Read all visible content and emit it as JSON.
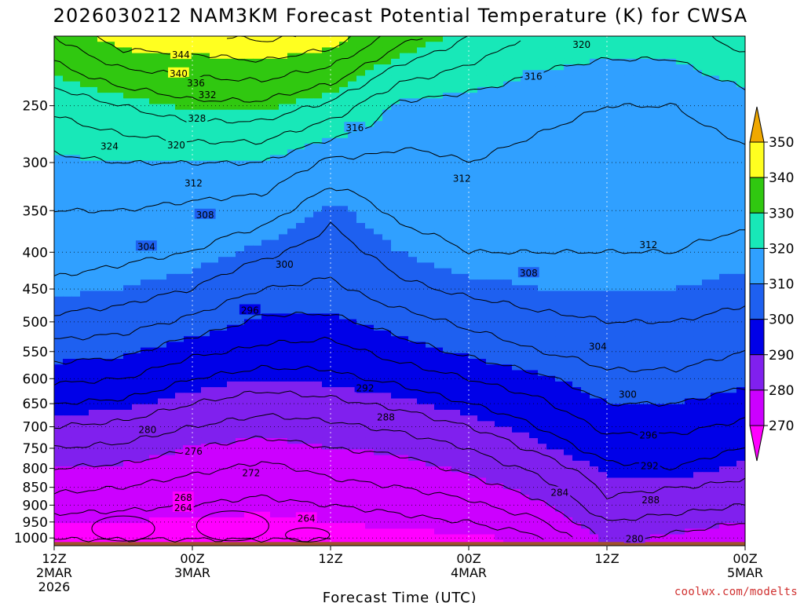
{
  "chart_data": {
    "type": "heatmap",
    "title": "2026030212 NAM3KM Forecast Potential Temperature (K) for CWSA",
    "xlabel": "Forecast Time (UTC)",
    "ylabel": "",
    "x_ticks": [
      {
        "hours": 0,
        "lines": [
          "12Z",
          "2MAR",
          "2026"
        ]
      },
      {
        "hours": 12,
        "lines": [
          "00Z",
          "3MAR"
        ]
      },
      {
        "hours": 24,
        "lines": [
          "12Z"
        ]
      },
      {
        "hours": 36,
        "lines": [
          "00Z",
          "4MAR"
        ]
      },
      {
        "hours": 48,
        "lines": [
          "12Z"
        ]
      },
      {
        "hours": 60,
        "lines": [
          "00Z",
          "5MAR"
        ]
      }
    ],
    "xlim_hours": [
      0,
      60
    ],
    "y_scale": "log-pressure",
    "y_ticks": [
      250,
      300,
      350,
      400,
      450,
      500,
      550,
      600,
      650,
      700,
      750,
      800,
      850,
      900,
      950,
      1000
    ],
    "ylim_hPa": [
      200,
      1025
    ],
    "grid": true,
    "colorbar": {
      "levels": [
        270,
        280,
        290,
        300,
        310,
        320,
        330,
        340,
        350
      ],
      "labels": [
        "270",
        "280",
        "290",
        "300",
        "310",
        "320",
        "330",
        "340",
        "350"
      ],
      "colors": [
        "#ff00ff",
        "#cc00ff",
        "#8020ee",
        "#0000e8",
        "#1e60f0",
        "#30a0ff",
        "#18e8b8",
        "#30c810",
        "#ffff20",
        "#f0a800"
      ],
      "extend": "both"
    },
    "fill_colors": {
      "lt270": "#ff00ff",
      "270": "#cc00ff",
      "280": "#8020ee",
      "290": "#0000e8",
      "300": "#1e60f0",
      "310": "#30a0ff",
      "320": "#18e8b8",
      "330": "#30c810",
      "340": "#ffff20"
    },
    "ground_color": "#a0522d",
    "profiles_K_at_hPa": {
      "pressure_levels": [
        1000,
        950,
        900,
        850,
        800,
        750,
        700,
        650,
        600,
        550,
        500,
        450,
        400,
        350,
        300,
        250,
        200
      ],
      "times_hours": [
        0,
        6,
        12,
        18,
        24,
        30,
        36,
        42,
        48,
        54,
        60
      ],
      "theta": [
        [
          268,
          270,
          274,
          277,
          280,
          284,
          288,
          292,
          297,
          302,
          307,
          311,
          314,
          316,
          319,
          325,
          336
        ],
        [
          268,
          270,
          273,
          276,
          279,
          283,
          287,
          291,
          296,
          301,
          306,
          310,
          313,
          316,
          320,
          328,
          343
        ],
        [
          268,
          269,
          272,
          274,
          277,
          280,
          284,
          288,
          292,
          297,
          303,
          308,
          312,
          315,
          320,
          331,
          343
        ],
        [
          268,
          269,
          271,
          273,
          275,
          278,
          282,
          286,
          290,
          295,
          299,
          304,
          309,
          314,
          320,
          331,
          345
        ],
        [
          268,
          270,
          272,
          275,
          277,
          280,
          283,
          287,
          291,
          294,
          299,
          303,
          306,
          309,
          315,
          327,
          343
        ],
        [
          269,
          271,
          273,
          276,
          278,
          281,
          285,
          289,
          293,
          298,
          302,
          307,
          310,
          313,
          315,
          319,
          334
        ],
        [
          269,
          272,
          275,
          278,
          281,
          284,
          288,
          292,
          296,
          301,
          305,
          309,
          312,
          314,
          316,
          318,
          328
        ],
        [
          271,
          275,
          279,
          282,
          285,
          289,
          292,
          295,
          299,
          304,
          307,
          310,
          312,
          314,
          315,
          317,
          323
        ],
        [
          281,
          284,
          287,
          289,
          291,
          294,
          297,
          300,
          303,
          306,
          308,
          310,
          312,
          313,
          314,
          316,
          322
        ],
        [
          279,
          282,
          286,
          288,
          292,
          294,
          297,
          300,
          303,
          306,
          308,
          310,
          312,
          313,
          314,
          316,
          322
        ],
        [
          277,
          280,
          284,
          287,
          289,
          292,
          295,
          298,
          301,
          304,
          307,
          309,
          311,
          313,
          315,
          318,
          326
        ]
      ]
    },
    "contour_labels": [
      {
        "value": "344",
        "t": 11,
        "p": 212
      },
      {
        "value": "340",
        "t": 10.8,
        "p": 225
      },
      {
        "value": "336",
        "t": 12.3,
        "p": 232
      },
      {
        "value": "332",
        "t": 13.3,
        "p": 241
      },
      {
        "value": "328",
        "t": 12.4,
        "p": 260
      },
      {
        "value": "324",
        "t": 4.8,
        "p": 284
      },
      {
        "value": "320",
        "t": 10.6,
        "p": 283
      },
      {
        "value": "320",
        "t": 45.8,
        "p": 205
      },
      {
        "value": "316",
        "t": 41.6,
        "p": 227
      },
      {
        "value": "316",
        "t": 26.1,
        "p": 268
      },
      {
        "value": "312",
        "t": 12.1,
        "p": 320
      },
      {
        "value": "312",
        "t": 35.4,
        "p": 315
      },
      {
        "value": "312",
        "t": 51.6,
        "p": 390
      },
      {
        "value": "308",
        "t": 13.1,
        "p": 354
      },
      {
        "value": "308",
        "t": 41.2,
        "p": 427
      },
      {
        "value": "304",
        "t": 8.0,
        "p": 392
      },
      {
        "value": "304",
        "t": 47.2,
        "p": 540
      },
      {
        "value": "300",
        "t": 20.0,
        "p": 415
      },
      {
        "value": "300",
        "t": 49.8,
        "p": 630
      },
      {
        "value": "296",
        "t": 17.0,
        "p": 481
      },
      {
        "value": "296",
        "t": 51.6,
        "p": 718
      },
      {
        "value": "292",
        "t": 27.0,
        "p": 617
      },
      {
        "value": "292",
        "t": 51.7,
        "p": 792
      },
      {
        "value": "288",
        "t": 28.8,
        "p": 677
      },
      {
        "value": "288",
        "t": 51.8,
        "p": 883
      },
      {
        "value": "284",
        "t": 43.9,
        "p": 863
      },
      {
        "value": "280",
        "t": 8.1,
        "p": 705
      },
      {
        "value": "280",
        "t": 50.4,
        "p": 1001
      },
      {
        "value": "276",
        "t": 12.1,
        "p": 756
      },
      {
        "value": "272",
        "t": 17.1,
        "p": 810
      },
      {
        "value": "268",
        "t": 11.2,
        "p": 877
      },
      {
        "value": "264",
        "t": 11.2,
        "p": 906
      },
      {
        "value": "264",
        "t": 21.9,
        "p": 937
      }
    ]
  },
  "credit": "coolwx.com/modelts"
}
